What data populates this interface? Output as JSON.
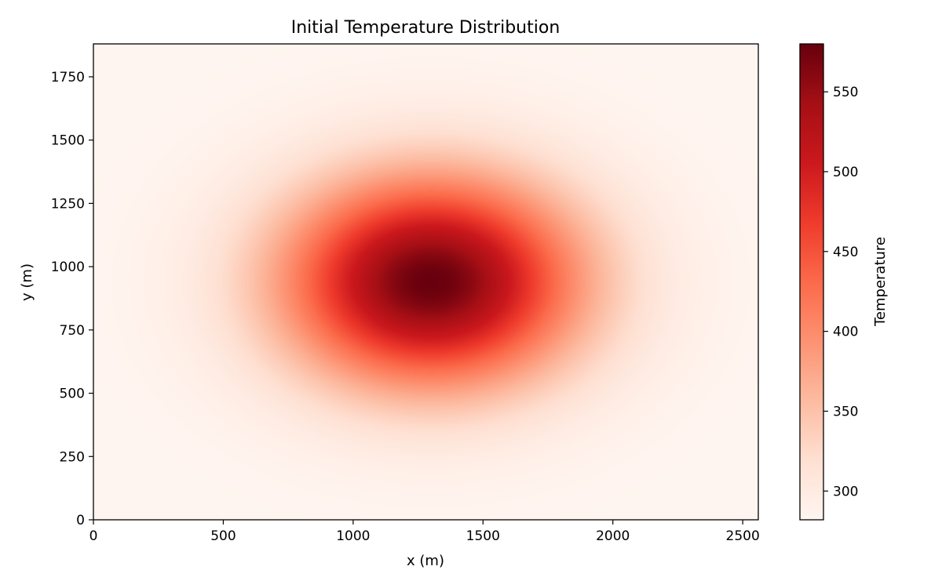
{
  "chart_data": {
    "type": "heatmap",
    "title": "Initial Temperature Distribution",
    "xlabel": "x (m)",
    "ylabel": "y (m)",
    "xlim": [
      0,
      2560
    ],
    "ylim": [
      0,
      1880
    ],
    "x_ticks": [
      0,
      500,
      1000,
      1500,
      2000,
      2500
    ],
    "y_ticks": [
      0,
      250,
      500,
      750,
      1000,
      1250,
      1500,
      1750
    ],
    "colormap": "Reds",
    "colorbar": {
      "label": "Temperature",
      "range": [
        282,
        580
      ],
      "ticks": [
        300,
        350,
        400,
        450,
        500,
        550
      ]
    },
    "field": {
      "shape": "gaussian",
      "ambient": 282,
      "peak": 580,
      "center": [
        1300,
        940
      ],
      "sigma": [
        400,
        290
      ]
    },
    "grid": false,
    "legend": "none"
  }
}
